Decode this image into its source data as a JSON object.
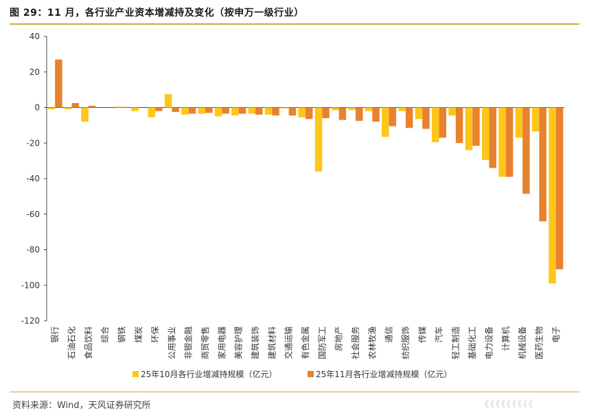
{
  "figure": {
    "title": "图 29：11 月，各行业产业资本增减持及变化（按申万一级行业）",
    "source": "资料来源：Wind，天风证券研究所",
    "watermark": "《《《《《《《《《"
  },
  "colors": {
    "series_oct": "#FFC61A",
    "series_nov": "#E8822E",
    "axis": "#444444",
    "rule": "#D9A441"
  },
  "chart_data": {
    "type": "bar",
    "title": "",
    "xlabel": "",
    "ylabel": "",
    "ylim": [
      -120,
      40
    ],
    "yticks": [
      40,
      20,
      0,
      -20,
      -40,
      -60,
      -80,
      -100,
      -120
    ],
    "grid": false,
    "legend_position": "bottom",
    "categories": [
      "银行",
      "石油石化",
      "食品饮料",
      "综合",
      "钢铁",
      "煤炭",
      "环保",
      "公用事业",
      "非银金融",
      "商贸零售",
      "家用电器",
      "美容护理",
      "建筑装饰",
      "建筑材料",
      "交通运输",
      "有色金属",
      "国防军工",
      "房地产",
      "社会服务",
      "农林牧渔",
      "通信",
      "纺织服饰",
      "传媒",
      "汽车",
      "轻工制造",
      "基础化工",
      "电力设备",
      "计算机",
      "机械设备",
      "医药生物",
      "电子"
    ],
    "series": [
      {
        "name": "25年10月各行业增减持规模（亿元）",
        "color": "#FFC61A",
        "values": [
          -1,
          -1,
          -8,
          0,
          0.5,
          -2,
          -5.5,
          7.5,
          -4,
          -3.5,
          -5,
          -4.5,
          -3.5,
          -4,
          -0.5,
          -5.5,
          -36,
          -1.5,
          -1.5,
          -2,
          -16.5,
          -2,
          -6.5,
          -19.5,
          -4.5,
          -24,
          -29.5,
          -39,
          -17,
          -13.5,
          -99
        ]
      },
      {
        "name": "25年11月各行业增减持规模（亿元）",
        "color": "#E8822E",
        "values": [
          27,
          2.5,
          1,
          0,
          0.3,
          0,
          -2,
          -2.5,
          -3.5,
          -3,
          -3.5,
          -3.5,
          -4,
          -4.5,
          -4.5,
          -6.5,
          -6,
          -7,
          -7.5,
          -8,
          -10.5,
          -11.5,
          -12,
          -17,
          -20,
          -21.5,
          -34,
          -39,
          -48.5,
          -64,
          -91
        ]
      }
    ]
  }
}
